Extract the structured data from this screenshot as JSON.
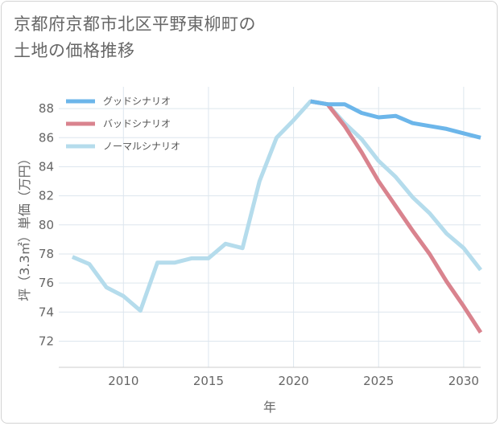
{
  "page": {
    "title_line1": "京都府京都市北区平野東柳町の",
    "title_line2": "土地の価格推移"
  },
  "chart_data": {
    "type": "line",
    "xlabel": "年",
    "ylabel": "坪（3.3㎡）単価（万円）",
    "xlim": [
      2006.2,
      2031
    ],
    "ylim": [
      70.2,
      89.5
    ],
    "x_ticks": [
      2010,
      2015,
      2020,
      2025,
      2030
    ],
    "y_ticks": [
      72,
      74,
      76,
      78,
      80,
      82,
      84,
      86,
      88
    ],
    "grid": true,
    "legend_position": "top-left",
    "series": [
      {
        "name": "グッドシナリオ",
        "color": "#6cb6ea",
        "points": [
          [
            2021,
            88.5
          ],
          [
            2022,
            88.3
          ],
          [
            2023,
            88.3
          ],
          [
            2024,
            87.7
          ],
          [
            2025,
            87.4
          ],
          [
            2026,
            87.5
          ],
          [
            2027,
            87.0
          ],
          [
            2028,
            86.8
          ],
          [
            2029,
            86.6
          ],
          [
            2030,
            86.3
          ],
          [
            2031,
            86.0
          ]
        ]
      },
      {
        "name": "バッドシナリオ",
        "color": "#d9838e",
        "points": [
          [
            2021,
            88.5
          ],
          [
            2022,
            88.3
          ],
          [
            2023,
            86.8
          ],
          [
            2024,
            85.0
          ],
          [
            2025,
            83.0
          ],
          [
            2026,
            81.3
          ],
          [
            2027,
            79.6
          ],
          [
            2028,
            78.0
          ],
          [
            2029,
            76.1
          ],
          [
            2030,
            74.4
          ],
          [
            2031,
            72.6
          ]
        ]
      },
      {
        "name": "ノーマルシナリオ",
        "color": "#b5dcec",
        "points": [
          [
            2007,
            77.8
          ],
          [
            2008,
            77.3
          ],
          [
            2009,
            75.7
          ],
          [
            2010,
            75.1
          ],
          [
            2011,
            74.1
          ],
          [
            2012,
            77.4
          ],
          [
            2013,
            77.4
          ],
          [
            2014,
            77.7
          ],
          [
            2015,
            77.7
          ],
          [
            2016,
            78.7
          ],
          [
            2017,
            78.4
          ],
          [
            2018,
            83.0
          ],
          [
            2019,
            86.0
          ],
          [
            2020,
            87.2
          ],
          [
            2021,
            88.5
          ],
          [
            2022,
            88.3
          ],
          [
            2023,
            87.0
          ],
          [
            2024,
            85.9
          ],
          [
            2025,
            84.4
          ],
          [
            2026,
            83.3
          ],
          [
            2027,
            81.9
          ],
          [
            2028,
            80.8
          ],
          [
            2029,
            79.4
          ],
          [
            2030,
            78.4
          ],
          [
            2031,
            76.9
          ]
        ]
      }
    ]
  }
}
